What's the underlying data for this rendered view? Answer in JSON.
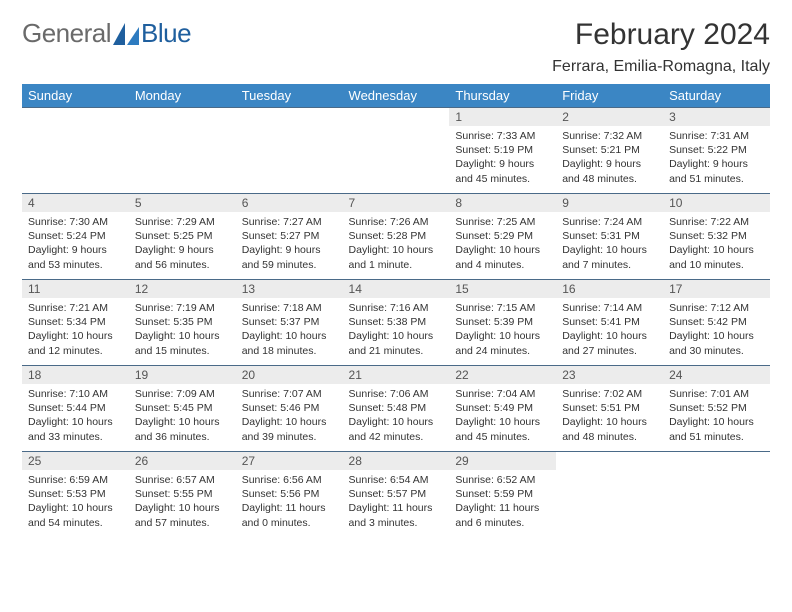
{
  "brand": {
    "part1": "General",
    "part2": "Blue",
    "accent_color": "#1f5f9e"
  },
  "title": "February 2024",
  "location": "Ferrara, Emilia-Romagna, Italy",
  "colors": {
    "header_bg": "#3b86c4",
    "header_text": "#ffffff",
    "daynum_bg": "#ececec",
    "border": "#4a6a88",
    "page_bg": "#ffffff",
    "text": "#333333"
  },
  "days_of_week": [
    "Sunday",
    "Monday",
    "Tuesday",
    "Wednesday",
    "Thursday",
    "Friday",
    "Saturday"
  ],
  "weeks": [
    [
      null,
      null,
      null,
      null,
      {
        "n": "1",
        "sunrise": "7:33 AM",
        "sunset": "5:19 PM",
        "daylight": "9 hours and 45 minutes."
      },
      {
        "n": "2",
        "sunrise": "7:32 AM",
        "sunset": "5:21 PM",
        "daylight": "9 hours and 48 minutes."
      },
      {
        "n": "3",
        "sunrise": "7:31 AM",
        "sunset": "5:22 PM",
        "daylight": "9 hours and 51 minutes."
      }
    ],
    [
      {
        "n": "4",
        "sunrise": "7:30 AM",
        "sunset": "5:24 PM",
        "daylight": "9 hours and 53 minutes."
      },
      {
        "n": "5",
        "sunrise": "7:29 AM",
        "sunset": "5:25 PM",
        "daylight": "9 hours and 56 minutes."
      },
      {
        "n": "6",
        "sunrise": "7:27 AM",
        "sunset": "5:27 PM",
        "daylight": "9 hours and 59 minutes."
      },
      {
        "n": "7",
        "sunrise": "7:26 AM",
        "sunset": "5:28 PM",
        "daylight": "10 hours and 1 minute."
      },
      {
        "n": "8",
        "sunrise": "7:25 AM",
        "sunset": "5:29 PM",
        "daylight": "10 hours and 4 minutes."
      },
      {
        "n": "9",
        "sunrise": "7:24 AM",
        "sunset": "5:31 PM",
        "daylight": "10 hours and 7 minutes."
      },
      {
        "n": "10",
        "sunrise": "7:22 AM",
        "sunset": "5:32 PM",
        "daylight": "10 hours and 10 minutes."
      }
    ],
    [
      {
        "n": "11",
        "sunrise": "7:21 AM",
        "sunset": "5:34 PM",
        "daylight": "10 hours and 12 minutes."
      },
      {
        "n": "12",
        "sunrise": "7:19 AM",
        "sunset": "5:35 PM",
        "daylight": "10 hours and 15 minutes."
      },
      {
        "n": "13",
        "sunrise": "7:18 AM",
        "sunset": "5:37 PM",
        "daylight": "10 hours and 18 minutes."
      },
      {
        "n": "14",
        "sunrise": "7:16 AM",
        "sunset": "5:38 PM",
        "daylight": "10 hours and 21 minutes."
      },
      {
        "n": "15",
        "sunrise": "7:15 AM",
        "sunset": "5:39 PM",
        "daylight": "10 hours and 24 minutes."
      },
      {
        "n": "16",
        "sunrise": "7:14 AM",
        "sunset": "5:41 PM",
        "daylight": "10 hours and 27 minutes."
      },
      {
        "n": "17",
        "sunrise": "7:12 AM",
        "sunset": "5:42 PM",
        "daylight": "10 hours and 30 minutes."
      }
    ],
    [
      {
        "n": "18",
        "sunrise": "7:10 AM",
        "sunset": "5:44 PM",
        "daylight": "10 hours and 33 minutes."
      },
      {
        "n": "19",
        "sunrise": "7:09 AM",
        "sunset": "5:45 PM",
        "daylight": "10 hours and 36 minutes."
      },
      {
        "n": "20",
        "sunrise": "7:07 AM",
        "sunset": "5:46 PM",
        "daylight": "10 hours and 39 minutes."
      },
      {
        "n": "21",
        "sunrise": "7:06 AM",
        "sunset": "5:48 PM",
        "daylight": "10 hours and 42 minutes."
      },
      {
        "n": "22",
        "sunrise": "7:04 AM",
        "sunset": "5:49 PM",
        "daylight": "10 hours and 45 minutes."
      },
      {
        "n": "23",
        "sunrise": "7:02 AM",
        "sunset": "5:51 PM",
        "daylight": "10 hours and 48 minutes."
      },
      {
        "n": "24",
        "sunrise": "7:01 AM",
        "sunset": "5:52 PM",
        "daylight": "10 hours and 51 minutes."
      }
    ],
    [
      {
        "n": "25",
        "sunrise": "6:59 AM",
        "sunset": "5:53 PM",
        "daylight": "10 hours and 54 minutes."
      },
      {
        "n": "26",
        "sunrise": "6:57 AM",
        "sunset": "5:55 PM",
        "daylight": "10 hours and 57 minutes."
      },
      {
        "n": "27",
        "sunrise": "6:56 AM",
        "sunset": "5:56 PM",
        "daylight": "11 hours and 0 minutes."
      },
      {
        "n": "28",
        "sunrise": "6:54 AM",
        "sunset": "5:57 PM",
        "daylight": "11 hours and 3 minutes."
      },
      {
        "n": "29",
        "sunrise": "6:52 AM",
        "sunset": "5:59 PM",
        "daylight": "11 hours and 6 minutes."
      },
      null,
      null
    ]
  ],
  "labels": {
    "sunrise": "Sunrise:",
    "sunset": "Sunset:",
    "daylight": "Daylight:"
  }
}
